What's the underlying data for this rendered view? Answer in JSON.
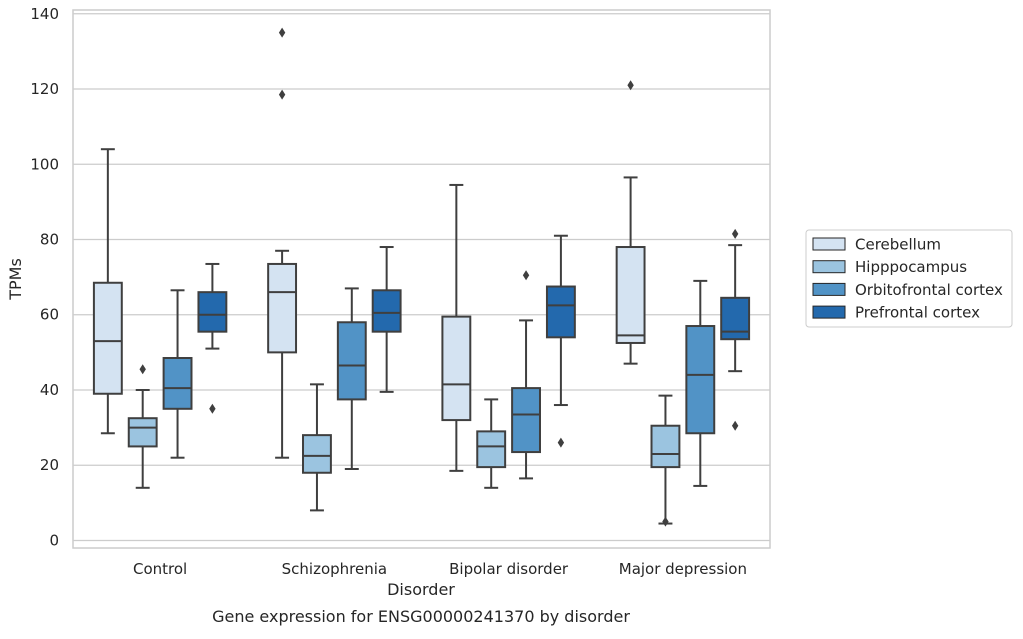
{
  "chart_data": {
    "type": "box",
    "title": "",
    "caption": "Gene expression for ENSG00000241370 by disorder",
    "xlabel": "Disorder",
    "ylabel": "TPMs",
    "ylim": [
      -2,
      141
    ],
    "yticks": [
      0,
      20,
      40,
      60,
      80,
      100,
      120,
      140
    ],
    "grid": "horizontal",
    "legend_position": "right",
    "categories": [
      "Control",
      "Schizophrenia",
      "Bipolar disorder",
      "Major depression"
    ],
    "series": [
      {
        "name": "Cerebellum",
        "color": "#d4e3f2",
        "boxes": [
          {
            "whisker_low": 28.5,
            "q1": 39,
            "median": 53,
            "q3": 68.5,
            "whisker_high": 104,
            "outliers": []
          },
          {
            "whisker_low": 22,
            "q1": 50,
            "median": 66,
            "q3": 73.5,
            "whisker_high": 77,
            "outliers": [
              118.5,
              135
            ]
          },
          {
            "whisker_low": 18.5,
            "q1": 32,
            "median": 41.5,
            "q3": 59.5,
            "whisker_high": 94.5,
            "outliers": []
          },
          {
            "whisker_low": 47,
            "q1": 52.5,
            "median": 54.5,
            "q3": 78,
            "whisker_high": 96.5,
            "outliers": [
              121
            ]
          }
        ]
      },
      {
        "name": "Hipppocampus",
        "color": "#9bc4e0",
        "boxes": [
          {
            "whisker_low": 14,
            "q1": 25,
            "median": 30,
            "q3": 32.5,
            "whisker_high": 40,
            "outliers": [
              45.5
            ]
          },
          {
            "whisker_low": 8,
            "q1": 18,
            "median": 22.5,
            "q3": 28,
            "whisker_high": 41.5,
            "outliers": []
          },
          {
            "whisker_low": 14,
            "q1": 19.5,
            "median": 25,
            "q3": 29,
            "whisker_high": 37.5,
            "outliers": []
          },
          {
            "whisker_low": 4.5,
            "q1": 19.5,
            "median": 23,
            "q3": 30.5,
            "whisker_high": 38.5,
            "outliers": [
              5
            ]
          }
        ]
      },
      {
        "name": "Orbitofrontal cortex",
        "color": "#5193c6",
        "boxes": [
          {
            "whisker_low": 22,
            "q1": 35,
            "median": 40.5,
            "q3": 48.5,
            "whisker_high": 66.5,
            "outliers": []
          },
          {
            "whisker_low": 19,
            "q1": 37.5,
            "median": 46.5,
            "q3": 58,
            "whisker_high": 67,
            "outliers": []
          },
          {
            "whisker_low": 16.5,
            "q1": 23.5,
            "median": 33.5,
            "q3": 40.5,
            "whisker_high": 58.5,
            "outliers": [
              70.5
            ]
          },
          {
            "whisker_low": 14.5,
            "q1": 28.5,
            "median": 44,
            "q3": 57,
            "whisker_high": 69,
            "outliers": []
          }
        ]
      },
      {
        "name": "Prefrontal cortex",
        "color": "#2369ad",
        "boxes": [
          {
            "whisker_low": 51,
            "q1": 55.5,
            "median": 60,
            "q3": 66,
            "whisker_high": 73.5,
            "outliers": [
              35
            ]
          },
          {
            "whisker_low": 39.5,
            "q1": 55.5,
            "median": 60.5,
            "q3": 66.5,
            "whisker_high": 78,
            "outliers": []
          },
          {
            "whisker_low": 36,
            "q1": 54,
            "median": 62.5,
            "q3": 67.5,
            "whisker_high": 81,
            "outliers": [
              26
            ]
          },
          {
            "whisker_low": 45,
            "q1": 53.5,
            "median": 55.5,
            "q3": 64.5,
            "whisker_high": 78.5,
            "outliers": [
              30.5,
              81.5
            ]
          }
        ]
      }
    ]
  }
}
